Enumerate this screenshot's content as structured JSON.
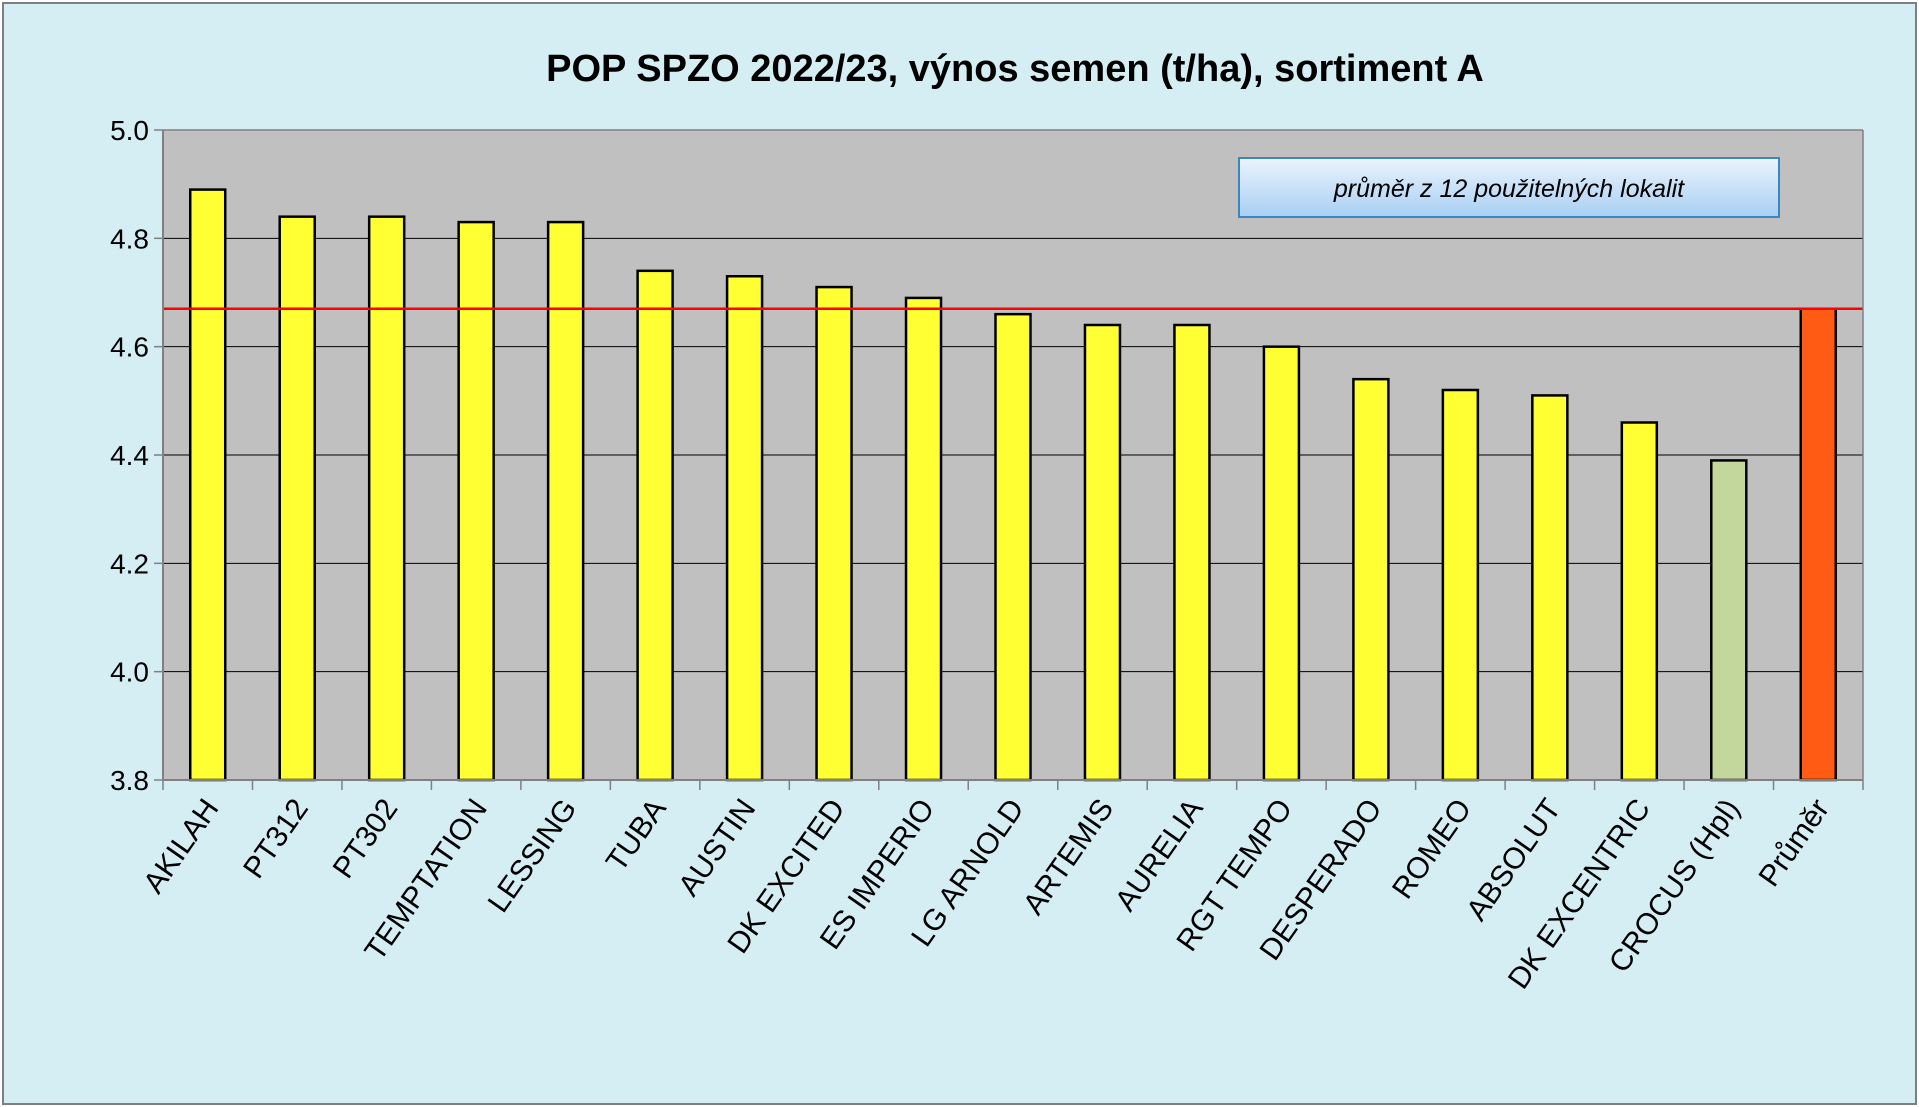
{
  "chart_data": {
    "type": "bar",
    "title": "POP SPZO 2022/23, výnos semen (t/ha), sortiment A",
    "annotation": "průměr z 12 použitelných lokalit",
    "xlabel": "",
    "ylabel": "",
    "ylim": [
      3.8,
      5.0
    ],
    "yticks": [
      "3.8",
      "4.0",
      "4.2",
      "4.4",
      "4.6",
      "4.8",
      "5.0"
    ],
    "grid": true,
    "reference_line": 4.67,
    "categories": [
      "AKILAH",
      "PT312",
      "PT302",
      "TEMPTATION",
      "LESSING",
      "TUBA",
      "AUSTIN",
      "DK EXCITED",
      "ES IMPERIO",
      "LG ARNOLD",
      "ARTEMIS",
      "AURELIA",
      "RGT TEMPO",
      "DESPERADO",
      "ROMEO",
      "ABSOLUT",
      "DK EXCENTRIC",
      "CROCUS (Hpl)",
      "Průměr"
    ],
    "values": [
      4.89,
      4.84,
      4.84,
      4.83,
      4.83,
      4.74,
      4.73,
      4.71,
      4.69,
      4.66,
      4.64,
      4.64,
      4.6,
      4.54,
      4.52,
      4.51,
      4.46,
      4.39,
      4.67
    ],
    "bar_colors": [
      "#ffff33",
      "#ffff33",
      "#ffff33",
      "#ffff33",
      "#ffff33",
      "#ffff33",
      "#ffff33",
      "#ffff33",
      "#ffff33",
      "#ffff33",
      "#ffff33",
      "#ffff33",
      "#ffff33",
      "#ffff33",
      "#ffff33",
      "#ffff33",
      "#ffff33",
      "#c3d69b",
      "#ff5b14"
    ],
    "colors": {
      "background": "#d4eef4",
      "plot_area": "#c0c0c0",
      "reference_line": "#ff0000",
      "annotation_box_top": "#eaf4fd",
      "annotation_box_bottom": "#a9cff3",
      "annotation_border": "#3a87c0"
    }
  }
}
